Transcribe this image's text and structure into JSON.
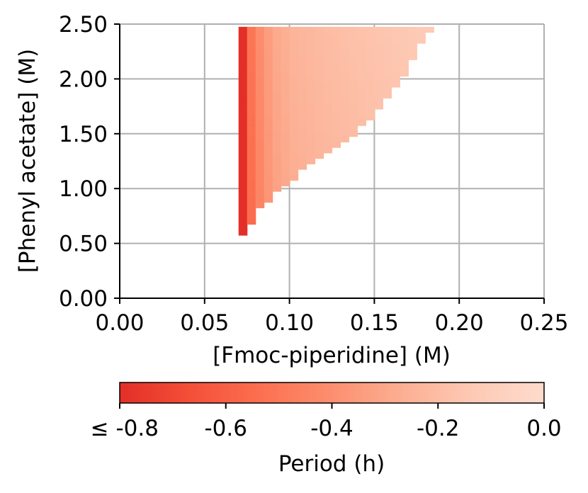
{
  "chart_data": {
    "type": "heatmap",
    "xlabel": "[Fmoc-piperidine] (M)",
    "ylabel": "[Phenyl acetate] (M)",
    "xlim": [
      0,
      0.25
    ],
    "ylim": [
      0,
      2.5
    ],
    "xticks": [
      "0.00",
      "0.05",
      "0.10",
      "0.15",
      "0.20",
      "0.25"
    ],
    "yticks": [
      "0.00",
      "0.50",
      "1.00",
      "1.50",
      "2.00",
      "2.50"
    ],
    "grid": true,
    "cell_size": {
      "dx": 0.005,
      "dy": 0.05
    },
    "region_rows": [
      {
        "y": 0.6,
        "x_start": 0.07,
        "x_end": 0.075
      },
      {
        "y": 0.65,
        "x_start": 0.07,
        "x_end": 0.075
      },
      {
        "y": 0.7,
        "x_start": 0.07,
        "x_end": 0.08
      },
      {
        "y": 0.75,
        "x_start": 0.07,
        "x_end": 0.08
      },
      {
        "y": 0.8,
        "x_start": 0.07,
        "x_end": 0.08
      },
      {
        "y": 0.85,
        "x_start": 0.07,
        "x_end": 0.085
      },
      {
        "y": 0.9,
        "x_start": 0.07,
        "x_end": 0.09
      },
      {
        "y": 0.95,
        "x_start": 0.07,
        "x_end": 0.09
      },
      {
        "y": 1.0,
        "x_start": 0.07,
        "x_end": 0.095
      },
      {
        "y": 1.05,
        "x_start": 0.07,
        "x_end": 0.1
      },
      {
        "y": 1.1,
        "x_start": 0.07,
        "x_end": 0.105
      },
      {
        "y": 1.15,
        "x_start": 0.07,
        "x_end": 0.105
      },
      {
        "y": 1.2,
        "x_start": 0.07,
        "x_end": 0.11
      },
      {
        "y": 1.25,
        "x_start": 0.07,
        "x_end": 0.115
      },
      {
        "y": 1.3,
        "x_start": 0.07,
        "x_end": 0.12
      },
      {
        "y": 1.35,
        "x_start": 0.07,
        "x_end": 0.125
      },
      {
        "y": 1.4,
        "x_start": 0.07,
        "x_end": 0.13
      },
      {
        "y": 1.45,
        "x_start": 0.07,
        "x_end": 0.135
      },
      {
        "y": 1.5,
        "x_start": 0.07,
        "x_end": 0.14
      },
      {
        "y": 1.55,
        "x_start": 0.07,
        "x_end": 0.14
      },
      {
        "y": 1.6,
        "x_start": 0.07,
        "x_end": 0.145
      },
      {
        "y": 1.65,
        "x_start": 0.07,
        "x_end": 0.15
      },
      {
        "y": 1.7,
        "x_start": 0.07,
        "x_end": 0.15
      },
      {
        "y": 1.75,
        "x_start": 0.07,
        "x_end": 0.155
      },
      {
        "y": 1.8,
        "x_start": 0.07,
        "x_end": 0.155
      },
      {
        "y": 1.85,
        "x_start": 0.07,
        "x_end": 0.16
      },
      {
        "y": 1.9,
        "x_start": 0.07,
        "x_end": 0.16
      },
      {
        "y": 1.95,
        "x_start": 0.07,
        "x_end": 0.165
      },
      {
        "y": 2.0,
        "x_start": 0.07,
        "x_end": 0.165
      },
      {
        "y": 2.05,
        "x_start": 0.07,
        "x_end": 0.17
      },
      {
        "y": 2.1,
        "x_start": 0.07,
        "x_end": 0.17
      },
      {
        "y": 2.15,
        "x_start": 0.07,
        "x_end": 0.17
      },
      {
        "y": 2.2,
        "x_start": 0.07,
        "x_end": 0.175
      },
      {
        "y": 2.25,
        "x_start": 0.07,
        "x_end": 0.175
      },
      {
        "y": 2.3,
        "x_start": 0.07,
        "x_end": 0.175
      },
      {
        "y": 2.35,
        "x_start": 0.07,
        "x_end": 0.18
      },
      {
        "y": 2.4,
        "x_start": 0.07,
        "x_end": 0.18
      },
      {
        "y": 2.45,
        "x_start": 0.07,
        "x_end": 0.185
      }
    ],
    "value_profile": {
      "description_x_offset_from_start": [
        0,
        0.005,
        0.01,
        0.015,
        0.02,
        0.03,
        0.05,
        0.08,
        0.12
      ],
      "period_values": [
        -0.82,
        -0.55,
        -0.45,
        -0.38,
        -0.33,
        -0.28,
        -0.24,
        -0.2,
        -0.15
      ]
    },
    "colorbar": {
      "label": "Period (h)",
      "min": -0.8,
      "max": 0.0,
      "tick_values": [
        -0.8,
        -0.6,
        -0.4,
        -0.2,
        0.0
      ],
      "tick_labels": [
        "≤ -0.8",
        "-0.6",
        "-0.4",
        "-0.2",
        "0.0"
      ],
      "colors": [
        "#e32f27",
        "#f44f39",
        "#fc7050",
        "#fc8f6f",
        "#fcaf93",
        "#fdcab5",
        "#fedbcc"
      ]
    }
  }
}
